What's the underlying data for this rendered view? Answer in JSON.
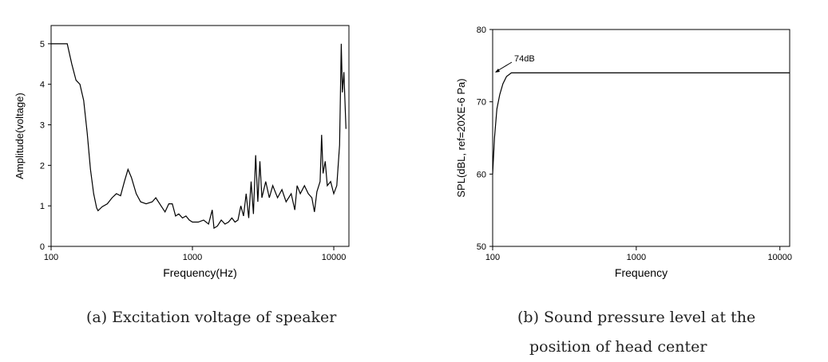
{
  "chart_data": [
    {
      "type": "line",
      "x_label": "Frequency(Hz)",
      "y_label": "Amplitude(voltage)",
      "caption": "(a) Excitation voltage of speaker",
      "x_scale": "log",
      "color": "#000000",
      "x": [
        100,
        130,
        140,
        150,
        160,
        170,
        180,
        190,
        200,
        210,
        215,
        230,
        250,
        270,
        290,
        310,
        330,
        350,
        370,
        400,
        430,
        470,
        520,
        550,
        600,
        640,
        680,
        720,
        760,
        800,
        850,
        900,
        950,
        1000,
        1100,
        1200,
        1300,
        1380,
        1420,
        1500,
        1600,
        1700,
        1800,
        1900,
        2000,
        2100,
        2200,
        2300,
        2400,
        2500,
        2600,
        2700,
        2800,
        2900,
        3000,
        3100,
        3300,
        3500,
        3700,
        4000,
        4300,
        4600,
        5000,
        5300,
        5500,
        5800,
        6200,
        6600,
        7000,
        7300,
        7600,
        8000,
        8200,
        8400,
        8700,
        9000,
        9500,
        10000,
        10500,
        11000,
        11300,
        11500,
        11800,
        12200
      ],
      "values": [
        5,
        5,
        4.5,
        4.1,
        4.0,
        3.6,
        2.8,
        1.9,
        1.3,
        0.95,
        0.88,
        0.98,
        1.05,
        1.2,
        1.3,
        1.25,
        1.6,
        1.9,
        1.7,
        1.3,
        1.1,
        1.05,
        1.1,
        1.2,
        1.0,
        0.85,
        1.05,
        1.05,
        0.75,
        0.8,
        0.7,
        0.75,
        0.65,
        0.6,
        0.6,
        0.65,
        0.55,
        0.9,
        0.45,
        0.5,
        0.65,
        0.55,
        0.6,
        0.7,
        0.6,
        0.65,
        1.0,
        0.75,
        1.3,
        0.7,
        1.6,
        0.8,
        2.25,
        1.1,
        2.1,
        1.2,
        1.6,
        1.2,
        1.5,
        1.2,
        1.4,
        1.1,
        1.3,
        0.9,
        1.5,
        1.3,
        1.5,
        1.3,
        1.2,
        0.85,
        1.35,
        1.6,
        2.75,
        1.8,
        2.1,
        1.5,
        1.6,
        1.3,
        1.5,
        2.5,
        5.0,
        3.8,
        4.3,
        2.9
      ],
      "xlim": [
        100,
        12800
      ],
      "xticks": [
        100,
        1000,
        10000
      ],
      "ylim": [
        0,
        5.45
      ],
      "yticks": [
        0,
        1,
        2,
        3,
        4,
        5
      ]
    },
    {
      "type": "line",
      "x_label": "Frequency",
      "y_label": "SPL(dBL, ref=20XE-6 Pa)",
      "caption": "(b) Sound pressure level at the position of head center",
      "x_scale": "log",
      "color": "#000000",
      "annotation": "74dB",
      "x": [
        100,
        103,
        107,
        112,
        118,
        125,
        135,
        200,
        500,
        1000,
        2000,
        5000,
        11700
      ],
      "values": [
        60,
        65,
        69,
        71,
        72.5,
        73.5,
        74,
        74,
        74,
        74,
        74,
        74,
        74
      ],
      "xlim": [
        100,
        11700
      ],
      "xticks": [
        100,
        1000,
        10000
      ],
      "ylim": [
        50,
        80
      ],
      "yticks": [
        50,
        60,
        70,
        80
      ]
    }
  ]
}
